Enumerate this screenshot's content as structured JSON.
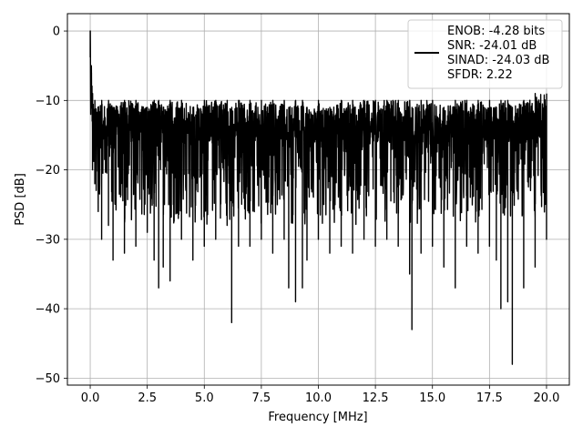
{
  "chart_data": {
    "type": "line",
    "xlabel": "Frequency [MHz]",
    "ylabel": "PSD [dB]",
    "xlim": [
      -1,
      21
    ],
    "ylim": [
      -51,
      2.5
    ],
    "xticks": [
      0,
      2.5,
      5,
      7.5,
      10,
      12.5,
      15,
      17.5,
      20
    ],
    "xtick_labels": [
      "0.0",
      "2.5",
      "5.0",
      "7.5",
      "10.0",
      "12.5",
      "15.0",
      "17.5",
      "20.0"
    ],
    "yticks": [
      0,
      -10,
      -20,
      -30,
      -40,
      -50
    ],
    "ytick_labels": [
      "0",
      "−10",
      "−20",
      "−30",
      "−40",
      "−50"
    ],
    "grid": true,
    "legend_placement": "top-right",
    "legend_lines": [
      "ENOB: -4.28 bits",
      "SNR: -24.01 dB",
      "SINAD: -24.03 dB",
      "SFDR: 2.22"
    ],
    "series": [
      {
        "color": "#000000",
        "x_range": [
          0,
          20
        ],
        "x": [
          0,
          0.02,
          0.05,
          0.1,
          0.2,
          0.35,
          0.5,
          0.8,
          1.0,
          1.5,
          2.0,
          2.5,
          2.8,
          3.0,
          3.2,
          3.5,
          4.0,
          4.5,
          5.0,
          5.5,
          6.0,
          6.2,
          6.5,
          7.0,
          7.5,
          8.0,
          8.5,
          8.7,
          9.0,
          9.3,
          9.5,
          10.0,
          10.5,
          11.0,
          11.5,
          12.0,
          12.5,
          13.0,
          13.5,
          14.0,
          14.1,
          14.5,
          15.0,
          15.5,
          16.0,
          16.5,
          17.0,
          17.5,
          17.8,
          18.0,
          18.3,
          18.5,
          19.0,
          19.5,
          20.0
        ],
        "y": [
          0,
          -12,
          -5,
          -20,
          -22,
          -26,
          -30,
          -28,
          -33,
          -32,
          -31,
          -29,
          -33,
          -37,
          -34,
          -36,
          -30,
          -33,
          -31,
          -30,
          -28,
          -42,
          -31,
          -31,
          -30,
          -32,
          -30,
          -37,
          -39,
          -37,
          -33,
          -30,
          -32,
          -31,
          -32,
          -30,
          -31,
          -30,
          -31,
          -35,
          -43,
          -32,
          -31,
          -34,
          -37,
          -31,
          -32,
          -31,
          -33,
          -40,
          -39,
          -48,
          -37,
          -34,
          -30
        ],
        "upper": [
          0,
          -5,
          -6,
          -9,
          -10,
          -11,
          -10,
          -10,
          -11,
          -10,
          -10,
          -11,
          -10,
          -10,
          -11,
          -10,
          -10,
          -11,
          -10,
          -10,
          -10,
          -11,
          -10,
          -10,
          -10,
          -10,
          -10,
          -11,
          -10,
          -10,
          -11,
          -10,
          -11,
          -10,
          -10,
          -10,
          -10,
          -10,
          -10,
          -10,
          -11,
          -10,
          -10,
          -11,
          -10,
          -10,
          -10,
          -10,
          -11,
          -10,
          -10,
          -11,
          -10,
          -9,
          -9
        ]
      }
    ]
  }
}
